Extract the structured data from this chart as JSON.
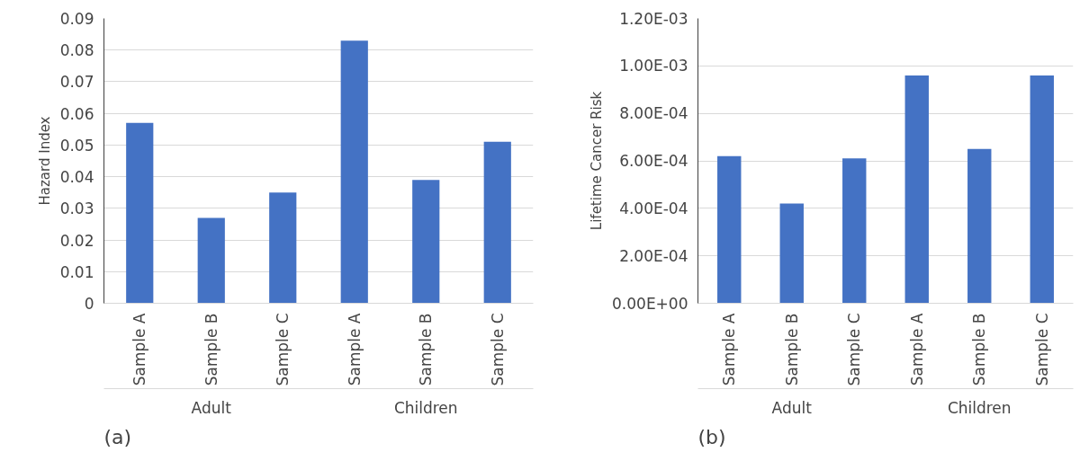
{
  "chart_data": [
    {
      "type": "bar",
      "ylabel": "Hazard Index",
      "categories": [
        "Sample A",
        "Sample B",
        "Sample C",
        "Sample A",
        "Sample B",
        "Sample C"
      ],
      "values": [
        0.057,
        0.027,
        0.035,
        0.083,
        0.039,
        0.051
      ],
      "color": "#4472c4",
      "ylim": [
        0,
        0.09
      ],
      "yticks": [
        {
          "value": 0,
          "label": "0"
        },
        0.01,
        0.02,
        0.03,
        0.04,
        0.05,
        0.06,
        0.07,
        0.08,
        0.09
      ],
      "grid": "y",
      "annotations": [
        "(a)",
        "Adult",
        "Children"
      ]
    },
    {
      "type": "bar",
      "ylabel": "Lifetime Cancer Risk",
      "categories": [
        "Sample A",
        "Sample B",
        "Sample C",
        "Sample A",
        "Sample B",
        "Sample C"
      ],
      "values": [
        0.00062,
        0.00042,
        0.00061,
        0.00096,
        0.00065,
        0.00096
      ],
      "color": "#4472c4",
      "ylim": [
        0,
        0.0012
      ],
      "yticks": [
        {
          "value": 0,
          "label": "0.00E+00"
        },
        {
          "value": 0.0002,
          "label": "2.00E-04"
        },
        {
          "value": 0.0004,
          "label": "4.00E-04"
        },
        {
          "value": 0.0006,
          "label": "6.00E-04"
        },
        {
          "value": 0.0008,
          "label": "8.00E-04"
        },
        {
          "value": 0.001,
          "label": "1.00E-03"
        },
        {
          "value": 0.0012,
          "label": "1.20E-03"
        }
      ],
      "grid": "y",
      "annotations": [
        "(b)",
        "Adult",
        "Children"
      ]
    }
  ]
}
